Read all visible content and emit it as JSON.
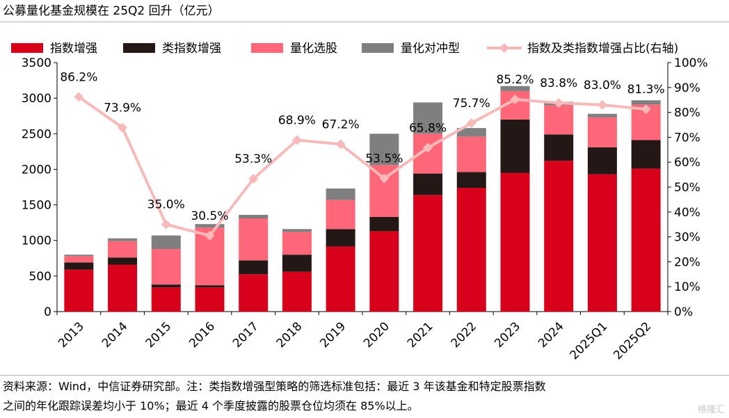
{
  "title": "公募量化基金规模在 25Q2 回升（亿元）",
  "source_line1": "资料来源：Wind，中信证券研究部。注：类指数增强型策略的筛选标准包括：最近 3 年该基金和特定股票指数",
  "source_line2": "之间的年化跟踪误差均小于 10%；最近 4 个季度披露的股票仓位均须在 85%以上。",
  "watermark": "格隆汇",
  "colors": {
    "index_enhanced": "#d9001b",
    "quasi_index": "#231815",
    "quant_stock": "#ff6677",
    "quant_hedge": "#7f7f7f",
    "ratio_line": "#f8b9b9"
  },
  "chart_data": {
    "type": "bar",
    "stacked": true,
    "categories": [
      "2013",
      "2014",
      "2015",
      "2016",
      "2017",
      "2018",
      "2019",
      "2020",
      "2021",
      "2022",
      "2023",
      "2024",
      "2025Q1",
      "2025Q2"
    ],
    "series": [
      {
        "name": "指数增强",
        "color_key": "index_enhanced",
        "values": [
          590,
          660,
          340,
          340,
          525,
          560,
          915,
          1130,
          1640,
          1740,
          1950,
          2120,
          1930,
          2010
        ]
      },
      {
        "name": "类指数增强",
        "color_key": "quasi_index",
        "values": [
          100,
          100,
          40,
          30,
          195,
          240,
          245,
          200,
          300,
          220,
          750,
          370,
          380,
          400
        ]
      },
      {
        "name": "量化选股",
        "color_key": "quant_stock",
        "values": [
          90,
          230,
          500,
          810,
          590,
          320,
          410,
          730,
          560,
          500,
          400,
          410,
          420,
          500
        ]
      },
      {
        "name": "量化对冲型",
        "color_key": "quant_hedge",
        "values": [
          20,
          40,
          190,
          50,
          50,
          40,
          160,
          440,
          440,
          120,
          70,
          50,
          50,
          60
        ]
      }
    ],
    "line": {
      "name": "指数及类指数增强占比(右轴)",
      "color_key": "ratio_line",
      "values": [
        86.2,
        73.9,
        35.0,
        30.5,
        53.3,
        68.9,
        67.2,
        53.5,
        65.8,
        75.7,
        85.2,
        83.8,
        83.0,
        81.3
      ],
      "labels": [
        "86.2%",
        "73.9%",
        "35.0%",
        "30.5%",
        "53.3%",
        "68.9%",
        "67.2%",
        "53.5%",
        "65.8%",
        "75.7%",
        "85.2%",
        "83.8%",
        "83.0%",
        "81.3%"
      ]
    },
    "y_left": {
      "min": 0,
      "max": 3500,
      "ticks": [
        0,
        500,
        1000,
        1500,
        2000,
        2500,
        3000,
        3500
      ],
      "labels": [
        "0",
        "500",
        "1000",
        "1500",
        "2000",
        "2500",
        "3000",
        "3500"
      ]
    },
    "y_right": {
      "min": 0,
      "max": 100,
      "ticks": [
        0,
        10,
        20,
        30,
        40,
        50,
        60,
        70,
        80,
        90,
        100
      ],
      "labels": [
        "0%",
        "10%",
        "20%",
        "30%",
        "40%",
        "50%",
        "60%",
        "70%",
        "80%",
        "90%",
        "100%"
      ]
    },
    "legend_position": "top",
    "grid": false
  }
}
